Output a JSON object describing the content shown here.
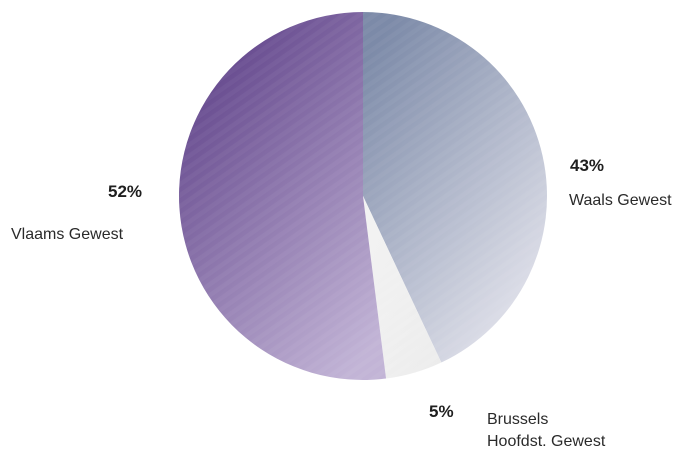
{
  "chart_data": {
    "type": "pie",
    "slices": [
      {
        "label": "Waals Gewest",
        "label_lines": [
          "Waals Gewest"
        ],
        "value": 43,
        "value_label": "43%",
        "color_start": "#7c8aa8",
        "color_end": "#e6e6ee"
      },
      {
        "label": "Brussels Hoofdst. Gewest",
        "label_lines": [
          "Brussels",
          "Hoofdst. Gewest"
        ],
        "value": 5,
        "value_label": "5%",
        "color_start": "#f3f3f3",
        "color_end": "#ececec"
      },
      {
        "label": "Vlaams Gewest",
        "label_lines": [
          "Vlaams Gewest"
        ],
        "value": 52,
        "value_label": "52%",
        "color_start": "#5a3c85",
        "color_end": "#c2b4d6"
      }
    ],
    "start_angle_deg": 0,
    "direction": "clockwise",
    "legend": "none"
  }
}
